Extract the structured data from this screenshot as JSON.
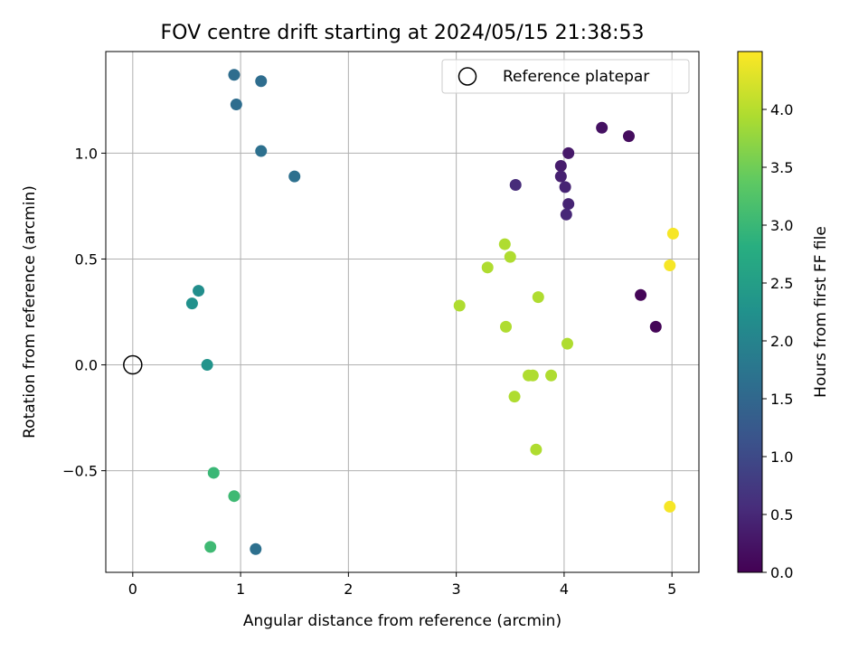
{
  "chart_data": {
    "type": "scatter",
    "title": "FOV centre drift starting at 2024/05/15 21:38:53",
    "xlabel": "Angular distance from reference (arcmin)",
    "ylabel": "Rotation from reference (arcmin)",
    "xlim": [
      -0.25,
      5.25
    ],
    "ylim": [
      -0.98,
      1.48
    ],
    "xticks": [
      0,
      1,
      2,
      3,
      4,
      5
    ],
    "xtick_labels": [
      "0",
      "1",
      "2",
      "3",
      "4",
      "5"
    ],
    "yticks": [
      -0.5,
      0.0,
      0.5,
      1.0
    ],
    "ytick_labels": [
      "−0.5",
      "0.0",
      "0.5",
      "1.0"
    ],
    "grid": true,
    "legend": {
      "location": "upper right",
      "label": "Reference platepar"
    },
    "reference_point": {
      "x": 0,
      "y": 0
    },
    "colormap": "viridis",
    "colorbar": {
      "label": "Hours from first FF file",
      "range": [
        0.0,
        4.5
      ],
      "ticks": [
        0.0,
        0.5,
        1.0,
        1.5,
        2.0,
        2.5,
        3.0,
        3.5,
        4.0
      ],
      "tick_labels": [
        "0.0",
        "0.5",
        "1.0",
        "1.5",
        "2.0",
        "2.5",
        "3.0",
        "3.5",
        "4.0"
      ]
    },
    "points": [
      {
        "x": 4.71,
        "y": 0.33,
        "t": 0.05
      },
      {
        "x": 4.85,
        "y": 0.18,
        "t": 0.05
      },
      {
        "x": 4.6,
        "y": 1.08,
        "t": 0.15
      },
      {
        "x": 4.35,
        "y": 1.12,
        "t": 0.2
      },
      {
        "x": 4.04,
        "y": 1.0,
        "t": 0.3
      },
      {
        "x": 3.97,
        "y": 0.94,
        "t": 0.35
      },
      {
        "x": 3.97,
        "y": 0.89,
        "t": 0.4
      },
      {
        "x": 4.01,
        "y": 0.84,
        "t": 0.45
      },
      {
        "x": 4.04,
        "y": 0.76,
        "t": 0.45
      },
      {
        "x": 4.02,
        "y": 0.71,
        "t": 0.5
      },
      {
        "x": 3.55,
        "y": 0.85,
        "t": 0.55
      },
      {
        "x": 0.94,
        "y": 1.37,
        "t": 1.6
      },
      {
        "x": 1.19,
        "y": 1.34,
        "t": 1.6
      },
      {
        "x": 0.96,
        "y": 1.23,
        "t": 1.6
      },
      {
        "x": 1.19,
        "y": 1.01,
        "t": 1.65
      },
      {
        "x": 1.5,
        "y": 0.89,
        "t": 1.65
      },
      {
        "x": 1.14,
        "y": -0.87,
        "t": 1.65
      },
      {
        "x": 0.61,
        "y": 0.35,
        "t": 2.2
      },
      {
        "x": 0.55,
        "y": 0.29,
        "t": 2.25
      },
      {
        "x": 0.69,
        "y": 0.0,
        "t": 2.3
      },
      {
        "x": 0.75,
        "y": -0.51,
        "t": 3.0
      },
      {
        "x": 0.94,
        "y": -0.62,
        "t": 3.05
      },
      {
        "x": 0.72,
        "y": -0.86,
        "t": 3.05
      },
      {
        "x": 3.45,
        "y": 0.57,
        "t": 3.95
      },
      {
        "x": 3.5,
        "y": 0.51,
        "t": 3.95
      },
      {
        "x": 3.29,
        "y": 0.46,
        "t": 3.95
      },
      {
        "x": 3.03,
        "y": 0.28,
        "t": 3.95
      },
      {
        "x": 3.76,
        "y": 0.32,
        "t": 3.95
      },
      {
        "x": 3.46,
        "y": 0.18,
        "t": 3.95
      },
      {
        "x": 4.03,
        "y": 0.1,
        "t": 3.95
      },
      {
        "x": 3.67,
        "y": -0.05,
        "t": 3.95
      },
      {
        "x": 3.71,
        "y": -0.05,
        "t": 3.95
      },
      {
        "x": 3.88,
        "y": -0.05,
        "t": 3.95
      },
      {
        "x": 3.54,
        "y": -0.15,
        "t": 3.95
      },
      {
        "x": 3.74,
        "y": -0.4,
        "t": 3.95
      },
      {
        "x": 5.01,
        "y": 0.62,
        "t": 4.45
      },
      {
        "x": 4.98,
        "y": 0.47,
        "t": 4.45
      },
      {
        "x": 4.98,
        "y": -0.67,
        "t": 4.45
      }
    ]
  }
}
